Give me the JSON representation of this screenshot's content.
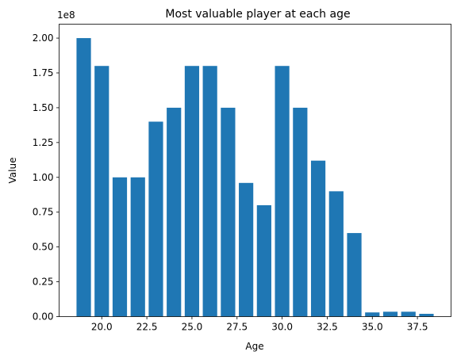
{
  "chart_data": {
    "type": "bar",
    "title": "Most valuable player at each age",
    "xlabel": "Age",
    "ylabel": "Value",
    "y_multiplier_label": "1e8",
    "x": [
      19,
      20,
      21,
      22,
      23,
      24,
      25,
      26,
      27,
      28,
      29,
      30,
      31,
      32,
      33,
      34,
      35,
      36,
      37,
      38
    ],
    "values": [
      200000000,
      180000000,
      100000000,
      100000000,
      140000000,
      150000000,
      180000000,
      180000000,
      150000000,
      96000000,
      80000000,
      180000000,
      150000000,
      112000000,
      90000000,
      60000000,
      3000000,
      3500000,
      3500000,
      2000000
    ],
    "xlim": [
      17.635,
      39.365
    ],
    "ylim": [
      0,
      210000000
    ],
    "xticks": [
      20,
      22.5,
      25,
      27.5,
      30,
      32.5,
      35,
      37.5
    ],
    "xtick_labels": [
      "20.0",
      "22.5",
      "25.0",
      "27.5",
      "30.0",
      "32.5",
      "35.0",
      "37.5"
    ],
    "yticks": [
      0,
      25000000,
      50000000,
      75000000,
      100000000,
      125000000,
      150000000,
      175000000,
      200000000
    ],
    "ytick_labels": [
      "0.00",
      "0.25",
      "0.50",
      "0.75",
      "1.00",
      "1.25",
      "1.50",
      "1.75",
      "2.00"
    ],
    "bar_color": "#1f77b4",
    "grid": false
  }
}
